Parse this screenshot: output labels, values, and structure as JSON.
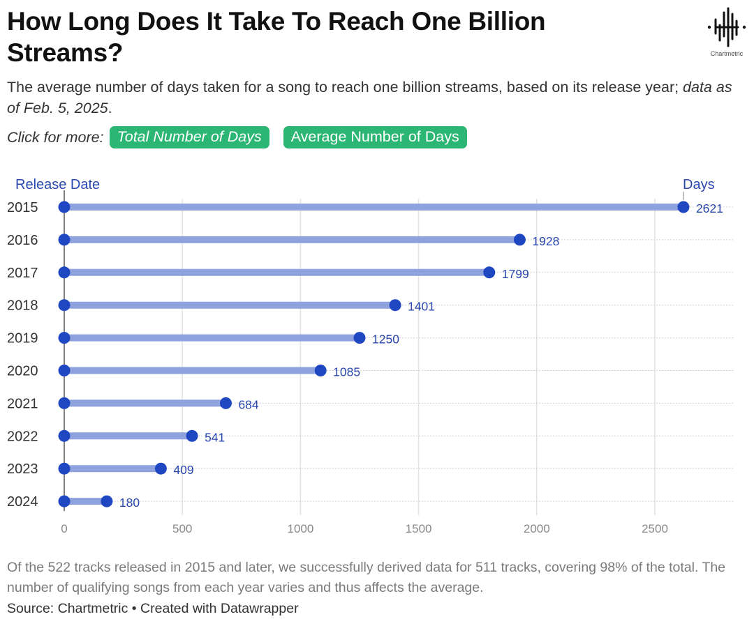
{
  "header": {
    "title": "How Long Does It Take To Reach One Billion Streams?",
    "subtitle_main": "The average number of days taken for a song to reach one billion streams, based on its release year; ",
    "subtitle_italic": "data as of Feb. 5, 2025",
    "subtitle_end": ".",
    "click_label": "Click for more:",
    "buttons": [
      {
        "label": "Total Number of Days"
      },
      {
        "label": "Average Number of Days"
      }
    ],
    "logo_text": "Chartmetric"
  },
  "colors": {
    "accent_green": "#2cb673",
    "dot": "#1f47c2",
    "bar": "#8ea3de",
    "label": "#2a48b0"
  },
  "chart_data": {
    "type": "bar",
    "subtype": "dot-lollipop",
    "title": "How Long Does It Take To Reach One Billion Streams?",
    "ylabel": "Release Date",
    "xlabel": "Days",
    "categories": [
      "2015",
      "2016",
      "2017",
      "2018",
      "2019",
      "2020",
      "2021",
      "2022",
      "2023",
      "2024"
    ],
    "values": [
      2621,
      1928,
      1799,
      1401,
      1250,
      1085,
      684,
      541,
      409,
      180
    ],
    "xlim": [
      0,
      2850
    ],
    "xticks": [
      0,
      500,
      1000,
      1500,
      2000,
      2500
    ],
    "grid": true,
    "legend": "none"
  },
  "footer": {
    "notes": "Of the 522 tracks released in 2015 and later, we successfully derived data for 511 tracks, covering 98% of the total. The number of qualifying songs from each year varies and thus affects the average.",
    "source": "Source: Chartmetric • Created with Datawrapper"
  }
}
